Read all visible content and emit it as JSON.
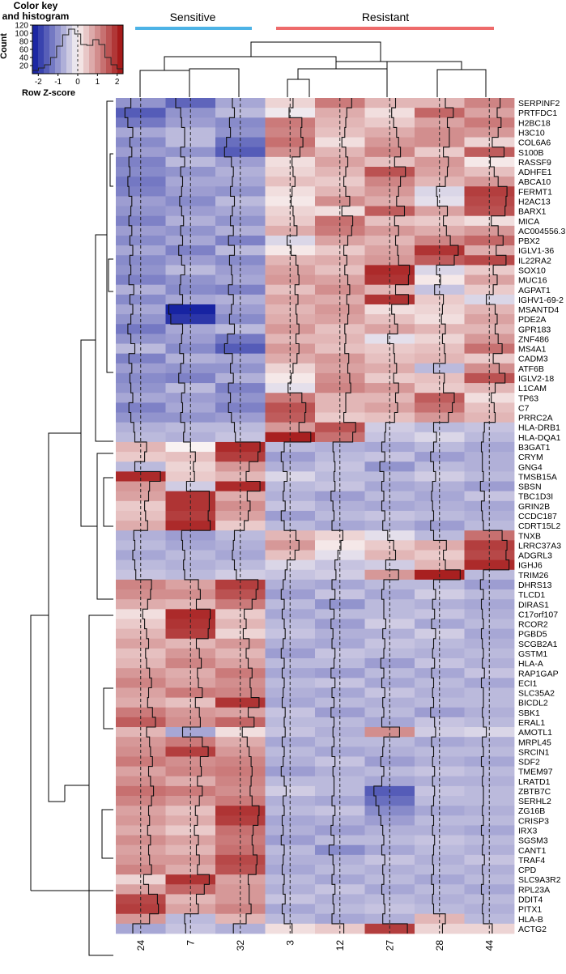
{
  "chart_data": {
    "type": "heatmap",
    "title": "",
    "group_labels": [
      {
        "name": "Sensitive",
        "color": "#4db3e6",
        "columns": [
          0,
          2
        ]
      },
      {
        "name": "Resistant",
        "color": "#ee6b6b",
        "columns": [
          3,
          7
        ]
      }
    ],
    "color_key": {
      "title_line1": "Color key",
      "title_line2": "and histogram",
      "ylabel": "Count",
      "xlabel": "Row Z-score",
      "xticks": [
        "-2",
        "-1",
        "0",
        "1",
        "2"
      ],
      "yticks": [
        "20",
        "40",
        "60",
        "80",
        "100",
        "120"
      ],
      "range": [
        -2.3,
        2.3
      ],
      "ylim": [
        0,
        120
      ],
      "histogram": [
        8,
        14,
        22,
        40,
        68,
        96,
        110,
        98,
        72,
        70,
        84,
        72,
        40,
        22,
        12
      ],
      "colors": [
        "#0d1a9e",
        "#f9f2f2",
        "#a00c0c"
      ]
    },
    "columns": [
      "24",
      "7",
      "32",
      "3",
      "12",
      "27",
      "28",
      "44"
    ],
    "rows": [
      {
        "gene": "SERPINF2",
        "z": [
          -1.0,
          -1.5,
          -0.8,
          0.3,
          1.2,
          0.6,
          0.6,
          1.1
        ]
      },
      {
        "gene": "PRTFDC1",
        "z": [
          -1.6,
          -1.0,
          -0.6,
          -0.1,
          0.7,
          0.2,
          1.4,
          0.8
        ]
      },
      {
        "gene": "H2BC18",
        "z": [
          -1.3,
          -0.9,
          -1.1,
          1.2,
          0.6,
          0.4,
          0.8,
          1.2
        ]
      },
      {
        "gene": "H3C10",
        "z": [
          -0.8,
          -0.6,
          -1.0,
          1.1,
          0.5,
          0.7,
          1.0,
          0.9
        ]
      },
      {
        "gene": "COL6A6",
        "z": [
          -1.1,
          -0.6,
          -1.4,
          1.3,
          0.2,
          0.9,
          1.0,
          0.3
        ]
      },
      {
        "gene": "S100B",
        "z": [
          -0.9,
          -1.0,
          -1.6,
          1.0,
          0.6,
          1.1,
          0.4,
          1.5
        ]
      },
      {
        "gene": "RASSF9",
        "z": [
          -1.2,
          -0.6,
          -0.9,
          0.2,
          0.8,
          0.5,
          0.9,
          0.1
        ]
      },
      {
        "gene": "ADHFE1",
        "z": [
          -1.1,
          -1.0,
          -0.7,
          0.3,
          0.6,
          1.6,
          0.8,
          0.5
        ]
      },
      {
        "gene": "ABCA10",
        "z": [
          -1.3,
          -0.8,
          -0.8,
          0.5,
          0.4,
          1.1,
          0.6,
          0.9
        ]
      },
      {
        "gene": "FERMT1",
        "z": [
          -1.2,
          -0.9,
          -1.0,
          0.2,
          0.6,
          0.9,
          -0.3,
          1.8
        ]
      },
      {
        "gene": "H2AC13",
        "z": [
          -0.9,
          -1.1,
          -0.6,
          0.1,
          1.0,
          0.7,
          -0.2,
          1.7
        ]
      },
      {
        "gene": "BARX1",
        "z": [
          -1.0,
          -0.9,
          -0.8,
          0.3,
          0.2,
          1.5,
          0.8,
          1.6
        ]
      },
      {
        "gene": "MICA",
        "z": [
          -1.2,
          -0.7,
          -1.0,
          0.4,
          1.3,
          0.5,
          0.4,
          0.2
        ]
      },
      {
        "gene": "AC004556.3",
        "z": [
          -0.9,
          -1.0,
          -0.7,
          0.7,
          1.2,
          0.9,
          0.7,
          0.9
        ]
      },
      {
        "gene": "PBX2",
        "z": [
          -1.1,
          -0.8,
          -1.2,
          -0.3,
          0.8,
          0.6,
          1.1,
          1.4
        ]
      },
      {
        "gene": "IGLV1-36",
        "z": [
          -0.8,
          -1.2,
          -0.6,
          0.1,
          0.4,
          0.8,
          1.9,
          0.7
        ]
      },
      {
        "gene": "IL22RA2",
        "z": [
          -1.1,
          -0.9,
          -1.1,
          0.6,
          0.7,
          0.9,
          1.5,
          1.7
        ]
      },
      {
        "gene": "SOX10",
        "z": [
          -1.0,
          -0.6,
          -0.9,
          0.8,
          0.5,
          2.0,
          -0.3,
          0.4
        ]
      },
      {
        "gene": "MUC16",
        "z": [
          -1.2,
          -1.0,
          -0.8,
          0.9,
          0.8,
          1.9,
          0.1,
          0.8
        ]
      },
      {
        "gene": "AGPAT1",
        "z": [
          -0.7,
          -1.1,
          -1.2,
          0.5,
          1.0,
          0.6,
          -0.5,
          0.4
        ]
      },
      {
        "gene": "IGHV1-69-2",
        "z": [
          -1.1,
          -0.8,
          -0.7,
          0.8,
          0.7,
          1.9,
          0.4,
          -0.3
        ]
      },
      {
        "gene": "MSANTD4",
        "z": [
          -0.8,
          -2.2,
          -0.9,
          0.6,
          0.9,
          0.2,
          0.3,
          0.6
        ]
      },
      {
        "gene": "PDE2A",
        "z": [
          -1.0,
          -2.0,
          -1.1,
          0.7,
          0.8,
          0.5,
          0.2,
          0.8
        ]
      },
      {
        "gene": "GPR183",
        "z": [
          -1.3,
          -0.8,
          -0.6,
          0.9,
          0.5,
          0.8,
          0.6,
          0.6
        ]
      },
      {
        "gene": "ZNF486",
        "z": [
          -1.0,
          -0.9,
          -1.3,
          0.6,
          0.6,
          -0.2,
          0.3,
          0.9
        ]
      },
      {
        "gene": "MS4A1",
        "z": [
          -0.6,
          -1.1,
          -1.6,
          0.9,
          0.5,
          0.4,
          0.5,
          1.3
        ]
      },
      {
        "gene": "CADM3",
        "z": [
          -1.2,
          -0.7,
          -0.8,
          0.7,
          0.9,
          0.5,
          0.6,
          0.4
        ]
      },
      {
        "gene": "ATF6B",
        "z": [
          -0.9,
          -1.0,
          -1.0,
          0.3,
          0.8,
          0.7,
          -0.6,
          1.0
        ]
      },
      {
        "gene": "IGLV2-18",
        "z": [
          -1.1,
          -1.2,
          -0.7,
          0.1,
          1.0,
          0.4,
          0.5,
          1.6
        ]
      },
      {
        "gene": "L1CAM",
        "z": [
          -1.0,
          -0.6,
          -1.2,
          -0.2,
          1.1,
          0.9,
          0.4,
          0.6
        ]
      },
      {
        "gene": "TP63",
        "z": [
          -0.8,
          -0.9,
          -1.0,
          1.2,
          0.6,
          0.6,
          1.5,
          0.2
        ]
      },
      {
        "gene": "C7",
        "z": [
          -1.2,
          -0.8,
          -1.2,
          1.6,
          0.6,
          0.8,
          1.3,
          0.5
        ]
      },
      {
        "gene": "PRRC2A",
        "z": [
          -1.0,
          -1.0,
          -0.9,
          1.5,
          0.4,
          0.5,
          0.9,
          0.6
        ]
      },
      {
        "gene": "HLA-DRB1",
        "z": [
          -0.7,
          -0.6,
          -0.6,
          0.9,
          1.6,
          -0.4,
          -0.6,
          -0.5
        ]
      },
      {
        "gene": "HLA-DQA1",
        "z": [
          -0.6,
          -0.7,
          -0.5,
          2.1,
          1.3,
          -0.5,
          -0.3,
          -0.6
        ]
      },
      {
        "gene": "B3GAT1",
        "z": [
          0.6,
          0.0,
          2.0,
          -0.6,
          -0.7,
          -0.8,
          -0.6,
          -0.8
        ]
      },
      {
        "gene": "CRYM",
        "z": [
          0.4,
          0.5,
          1.8,
          -0.9,
          -0.6,
          -0.5,
          -0.9,
          -0.7
        ]
      },
      {
        "gene": "GNG4",
        "z": [
          -0.6,
          0.3,
          0.9,
          -0.7,
          -0.5,
          -1.0,
          -0.6,
          -0.7
        ]
      },
      {
        "gene": "TMSB15A",
        "z": [
          2.0,
          0.4,
          0.6,
          -0.3,
          -0.6,
          -0.6,
          -0.4,
          -0.6
        ]
      },
      {
        "gene": "SBSN",
        "z": [
          0.9,
          -0.4,
          2.0,
          -0.6,
          -0.5,
          -0.8,
          -0.7,
          -0.9
        ]
      },
      {
        "gene": "TBC1D3I",
        "z": [
          0.8,
          1.9,
          0.7,
          -0.7,
          -0.9,
          -0.6,
          -0.8,
          -0.5
        ]
      },
      {
        "gene": "GRIN2B",
        "z": [
          0.4,
          1.9,
          1.0,
          -0.5,
          -0.7,
          -0.8,
          -0.7,
          -0.8
        ]
      },
      {
        "gene": "CCDC187",
        "z": [
          0.5,
          1.8,
          0.8,
          -0.9,
          -0.6,
          -0.5,
          -0.6,
          -0.7
        ]
      },
      {
        "gene": "CDRT15L2",
        "z": [
          0.7,
          2.0,
          0.4,
          -0.6,
          -0.8,
          -0.7,
          -0.9,
          -0.6
        ]
      },
      {
        "gene": "TNXB",
        "z": [
          -0.7,
          -0.9,
          -0.6,
          0.6,
          0.3,
          -0.2,
          -0.6,
          1.3
        ]
      },
      {
        "gene": "LRRC37A3",
        "z": [
          -0.6,
          -0.8,
          -0.7,
          0.9,
          0.1,
          0.4,
          0.7,
          1.8
        ]
      },
      {
        "gene": "ADGRL3",
        "z": [
          -0.8,
          -0.6,
          -0.8,
          0.5,
          -0.2,
          0.6,
          0.4,
          1.7
        ]
      },
      {
        "gene": "IGHJ6",
        "z": [
          -0.6,
          -0.7,
          -0.6,
          -0.3,
          -0.5,
          -0.4,
          0.6,
          2.0
        ]
      },
      {
        "gene": "TRIM26",
        "z": [
          -0.5,
          -0.6,
          -0.4,
          -0.5,
          -0.4,
          0.9,
          2.1,
          -0.6
        ]
      },
      {
        "gene": "DHRS13",
        "z": [
          1.1,
          0.8,
          1.8,
          -0.7,
          -0.8,
          -0.6,
          -0.6,
          -0.9
        ]
      },
      {
        "gene": "TLCD1",
        "z": [
          1.0,
          1.0,
          1.6,
          -0.9,
          -0.5,
          -0.8,
          -0.4,
          -0.6
        ]
      },
      {
        "gene": "DIRAS1",
        "z": [
          0.7,
          0.6,
          1.2,
          -0.6,
          -1.0,
          -0.6,
          -0.7,
          -0.8
        ]
      },
      {
        "gene": "C17orf107",
        "z": [
          0.2,
          2.0,
          0.4,
          -0.8,
          -0.6,
          -0.6,
          -0.5,
          -0.7
        ]
      },
      {
        "gene": "RCOR2",
        "z": [
          0.4,
          1.9,
          0.6,
          -0.6,
          -0.9,
          -0.4,
          -0.8,
          -0.6
        ]
      },
      {
        "gene": "PGBD5",
        "z": [
          0.6,
          1.8,
          0.3,
          -0.5,
          -0.7,
          -0.7,
          -0.4,
          -0.8
        ]
      },
      {
        "gene": "SCGB2A1",
        "z": [
          0.8,
          0.6,
          0.9,
          -0.7,
          -0.8,
          -0.5,
          -0.6,
          -0.7
        ]
      },
      {
        "gene": "GSTM1",
        "z": [
          0.5,
          0.9,
          0.6,
          -0.9,
          -0.5,
          -0.6,
          -0.7,
          -0.6
        ]
      },
      {
        "gene": "HLA-A",
        "z": [
          0.6,
          1.1,
          0.8,
          -0.6,
          -0.6,
          -0.9,
          -0.5,
          -0.7
        ]
      },
      {
        "gene": "RAP1GAP",
        "z": [
          0.9,
          0.7,
          1.2,
          -0.8,
          -0.9,
          -0.6,
          -0.8,
          -0.5
        ]
      },
      {
        "gene": "ECI1",
        "z": [
          1.1,
          0.8,
          1.0,
          -0.6,
          -0.5,
          -0.8,
          -0.6,
          -0.8
        ]
      },
      {
        "gene": "SLC35A2",
        "z": [
          0.8,
          1.2,
          1.1,
          -0.7,
          -0.8,
          -0.5,
          -0.7,
          -0.6
        ]
      },
      {
        "gene": "BICDL2",
        "z": [
          0.7,
          0.5,
          1.9,
          -0.8,
          -0.6,
          -0.7,
          -0.6,
          -0.6
        ]
      },
      {
        "gene": "SBK1",
        "z": [
          1.2,
          0.9,
          0.8,
          -0.5,
          -0.9,
          -0.6,
          -0.9,
          -0.7
        ]
      },
      {
        "gene": "ERAL1",
        "z": [
          1.5,
          1.0,
          1.4,
          -0.6,
          -0.6,
          -0.8,
          -0.5,
          -0.6
        ]
      },
      {
        "gene": "AMOTL1",
        "z": [
          0.6,
          -0.8,
          0.2,
          -0.5,
          -0.7,
          1.0,
          -0.4,
          -0.3
        ]
      },
      {
        "gene": "MRPL45",
        "z": [
          0.9,
          1.2,
          0.7,
          -0.8,
          -0.6,
          -0.6,
          -0.8,
          -0.7
        ]
      },
      {
        "gene": "SRCIN1",
        "z": [
          1.0,
          1.8,
          0.9,
          -0.6,
          -0.8,
          -0.7,
          -0.6,
          -0.6
        ]
      },
      {
        "gene": "SDF2",
        "z": [
          1.2,
          1.0,
          1.1,
          -0.7,
          -0.5,
          -0.9,
          -0.7,
          -0.8
        ]
      },
      {
        "gene": "TMEM97",
        "z": [
          0.8,
          1.1,
          1.2,
          -0.9,
          -0.7,
          -0.6,
          -0.5,
          -0.6
        ]
      },
      {
        "gene": "LRATD1",
        "z": [
          1.0,
          0.7,
          1.1,
          -0.6,
          -0.6,
          -0.8,
          -0.7,
          -0.7
        ]
      },
      {
        "gene": "ZBTB7C",
        "z": [
          1.3,
          1.2,
          1.0,
          -0.4,
          -0.6,
          -1.6,
          -0.5,
          -0.6
        ]
      },
      {
        "gene": "SERHL2",
        "z": [
          1.1,
          0.9,
          1.2,
          -0.7,
          -0.8,
          -1.4,
          -0.6,
          -0.6
        ]
      },
      {
        "gene": "ZG16B",
        "z": [
          0.8,
          0.5,
          1.9,
          -0.6,
          -0.5,
          -1.1,
          -0.8,
          -0.7
        ]
      },
      {
        "gene": "CRISP3",
        "z": [
          0.9,
          0.7,
          1.8,
          -0.8,
          -0.7,
          -0.9,
          -0.6,
          -0.6
        ]
      },
      {
        "gene": "IRX3",
        "z": [
          0.7,
          0.4,
          1.3,
          -0.7,
          -0.9,
          -0.7,
          -0.7,
          -0.8
        ]
      },
      {
        "gene": "SGSM3",
        "z": [
          1.0,
          0.8,
          1.2,
          -0.9,
          -0.6,
          -0.6,
          -0.5,
          -0.6
        ]
      },
      {
        "gene": "CANT1",
        "z": [
          0.8,
          0.6,
          1.3,
          -0.6,
          -1.1,
          -0.8,
          -0.6,
          -0.7
        ]
      },
      {
        "gene": "TRAF4",
        "z": [
          0.9,
          0.9,
          1.7,
          -0.7,
          -0.7,
          -0.5,
          -0.7,
          -0.5
        ]
      },
      {
        "gene": "CPD",
        "z": [
          1.1,
          0.7,
          1.6,
          -0.8,
          -0.6,
          -0.7,
          -0.6,
          -0.7
        ]
      },
      {
        "gene": "SLC9A3R2",
        "z": [
          0.3,
          1.9,
          0.8,
          -0.6,
          -0.8,
          -0.6,
          -0.8,
          -0.6
        ]
      },
      {
        "gene": "RPL23A",
        "z": [
          0.8,
          1.4,
          0.9,
          -0.7,
          -0.5,
          -0.8,
          -0.6,
          -0.8
        ]
      },
      {
        "gene": "DDIT4",
        "z": [
          1.7,
          0.6,
          0.9,
          -0.5,
          -0.7,
          -0.6,
          -0.7,
          -0.6
        ]
      },
      {
        "gene": "PITX1",
        "z": [
          1.8,
          0.8,
          1.1,
          -0.8,
          -0.6,
          -0.5,
          -0.6,
          -0.7
        ]
      },
      {
        "gene": "HLA-B",
        "z": [
          0.9,
          -0.6,
          0.6,
          -0.6,
          -0.8,
          -0.7,
          0.6,
          -0.6
        ]
      },
      {
        "gene": "ACTG2",
        "z": [
          -0.8,
          -0.5,
          -0.7,
          0.2,
          0.4,
          1.8,
          0.3,
          0.3
        ]
      }
    ]
  }
}
